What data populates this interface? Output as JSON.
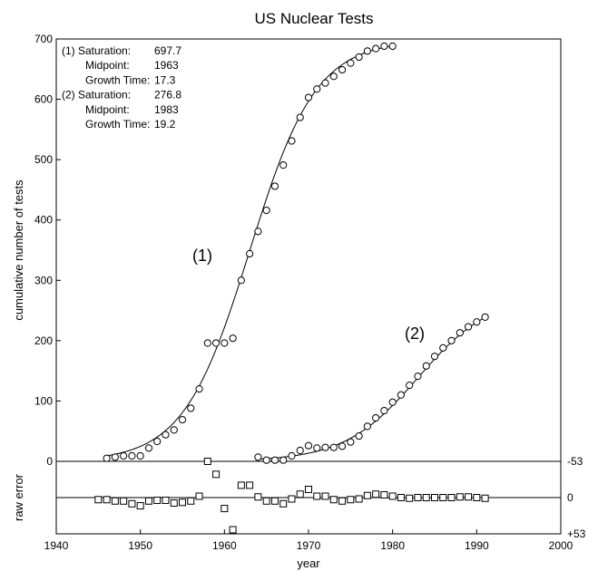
{
  "chart_data": {
    "type": "scatter",
    "title": "US Nuclear Tests",
    "main": {
      "ylabel": "cumulative number of tests",
      "ylim": [
        0,
        700
      ],
      "yticks": [
        "0",
        "100",
        "200",
        "300",
        "400",
        "500",
        "600",
        "700"
      ],
      "curve_labels": [
        "(1)",
        "(2)"
      ],
      "annotation": [
        {
          "label": "(1) Saturation:",
          "value": "697.7"
        },
        {
          "label": "Midpoint:",
          "value": "1963"
        },
        {
          "label": "Growth Time:",
          "value": "17.3"
        },
        {
          "label": "(2) Saturation:",
          "value": "276.8"
        },
        {
          "label": "Midpoint:",
          "value": "1983"
        },
        {
          "label": "Growth Time:",
          "value": "19.2"
        }
      ],
      "series": [
        {
          "marker": "circle",
          "x": [
            1946,
            1947,
            1948,
            1949,
            1950,
            1951,
            1952,
            1953,
            1954,
            1955,
            1956,
            1957,
            1958,
            1959,
            1960,
            1961,
            1962,
            1963,
            1964,
            1965,
            1966,
            1967,
            1968,
            1969,
            1970,
            1971,
            1972,
            1973,
            1974,
            1975,
            1976,
            1977,
            1978,
            1979,
            1980
          ],
          "y": [
            5,
            7,
            9,
            9,
            9,
            22,
            33,
            44,
            52,
            69,
            88,
            120,
            196,
            196,
            196,
            204,
            300,
            344,
            381,
            416,
            456,
            491,
            531,
            570,
            603,
            617,
            627,
            638,
            649,
            660,
            670,
            680,
            684,
            688,
            688
          ]
        },
        {
          "marker": "circle",
          "x": [
            1964,
            1965,
            1966,
            1967,
            1968,
            1969,
            1970,
            1971,
            1972,
            1973,
            1974,
            1975,
            1976,
            1977,
            1978,
            1979,
            1980,
            1981,
            1982,
            1983,
            1984,
            1985,
            1986,
            1987,
            1988,
            1989,
            1990,
            1991
          ],
          "y": [
            7,
            2,
            2,
            2,
            9,
            18,
            26,
            22,
            23,
            23,
            25,
            32,
            42,
            58,
            72,
            84,
            98,
            110,
            126,
            141,
            158,
            174,
            188,
            200,
            213,
            223,
            231,
            239
          ]
        }
      ],
      "fits": [
        {
          "saturation": 697.7,
          "midpoint": 1963,
          "growth_time": 17.3,
          "x_range": [
            1946,
            1980
          ]
        },
        {
          "saturation": 276.8,
          "midpoint": 1983,
          "growth_time": 19.2,
          "x_range": [
            1964,
            1991
          ]
        }
      ]
    },
    "residual": {
      "ylabel": "raw error",
      "ylim": [
        53,
        -53
      ],
      "yticks": [
        "-53",
        "0",
        "+53"
      ],
      "marker": "square",
      "x": [
        1945,
        1946,
        1947,
        1948,
        1949,
        1950,
        1951,
        1952,
        1953,
        1954,
        1955,
        1956,
        1957,
        1958,
        1959,
        1960,
        1961,
        1962,
        1963,
        1964,
        1965,
        1966,
        1967,
        1968,
        1969,
        1970,
        1971,
        1972,
        1973,
        1974,
        1975,
        1976,
        1977,
        1978,
        1979,
        1980,
        1981,
        1982,
        1983,
        1984,
        1985,
        1986,
        1987,
        1988,
        1989,
        1990,
        1991
      ],
      "y": [
        3,
        3,
        5,
        5,
        9,
        12,
        5,
        4,
        4,
        8,
        7,
        5,
        -2,
        -53,
        -34,
        16,
        47,
        -18,
        -18,
        -1,
        5,
        5,
        9,
        2,
        -5,
        -12,
        -2,
        -2,
        3,
        5,
        3,
        2,
        -3,
        -5,
        -4,
        -2,
        0,
        1,
        0,
        0,
        0,
        0,
        0,
        -1,
        -1,
        0,
        1
      ]
    },
    "x": {
      "label": "year",
      "xlim": [
        1940,
        2000
      ],
      "xticks": [
        "1940",
        "1950",
        "1960",
        "1970",
        "1980",
        "1990",
        "2000"
      ]
    },
    "grid": false,
    "legend": "none"
  }
}
